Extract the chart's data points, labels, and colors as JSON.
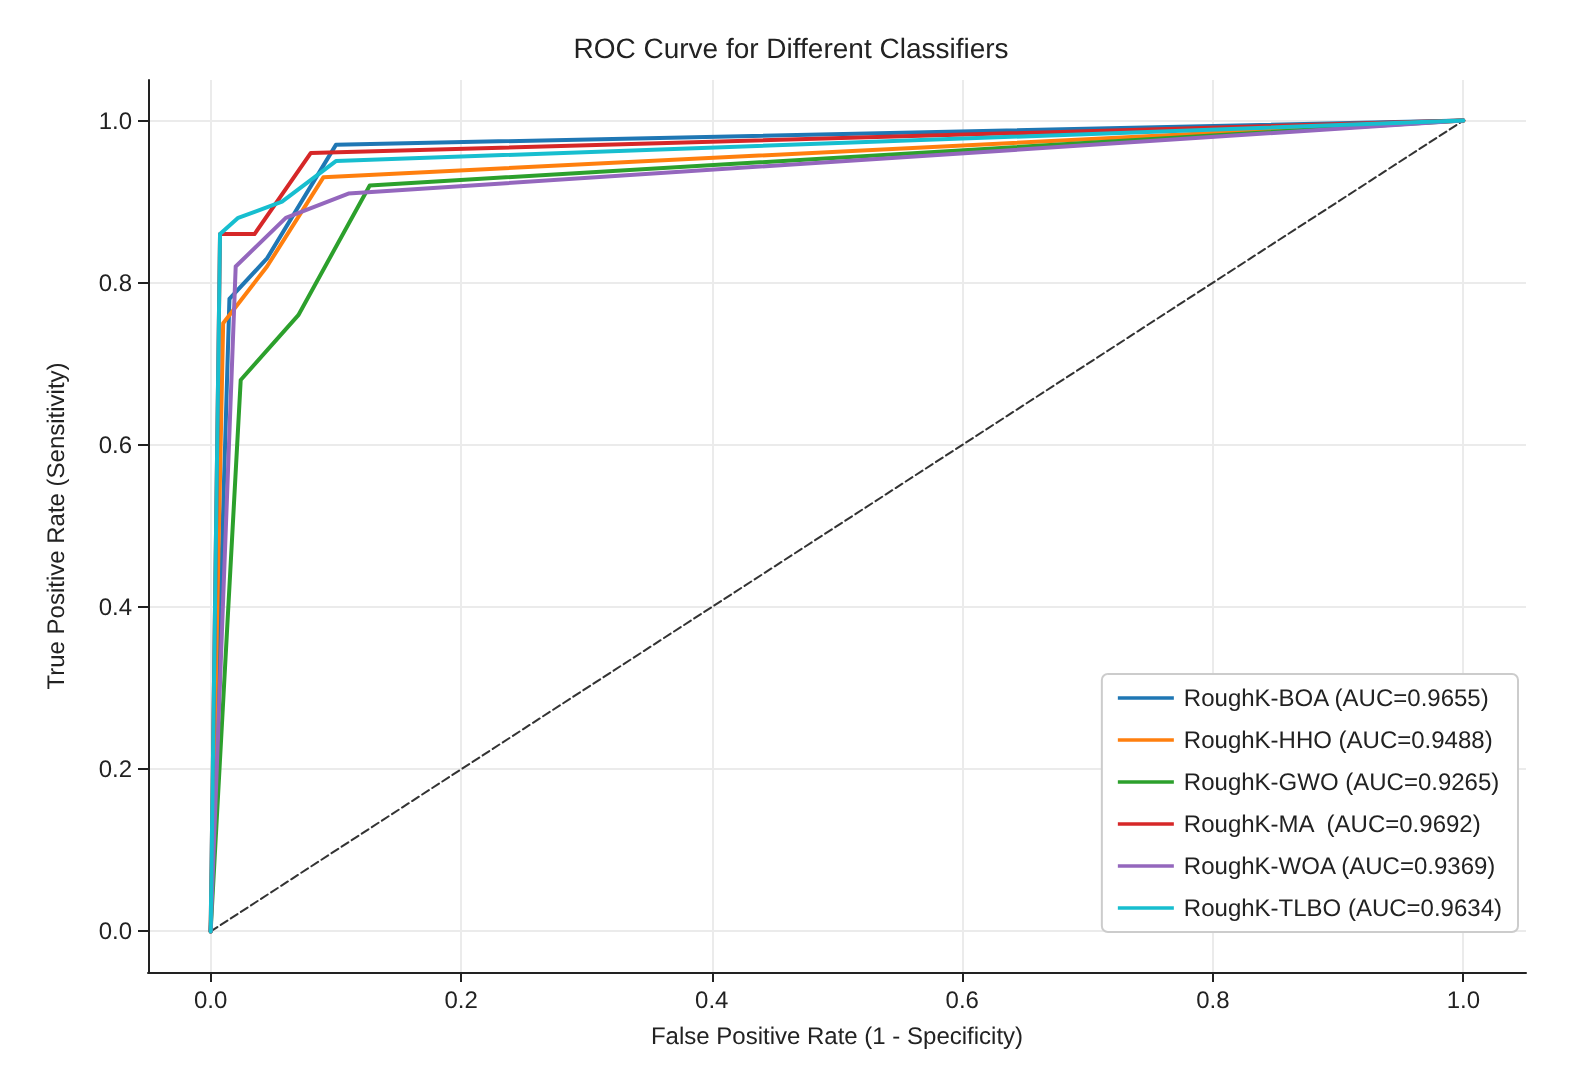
{
  "chart_data": {
    "type": "line",
    "title": "ROC Curve for Different Classifiers",
    "xlabel": "False Positive Rate (1 - Specificity)",
    "ylabel": "True Positive Rate (Sensitivity)",
    "xlim": [
      -0.05,
      1.05
    ],
    "ylim": [
      -0.05,
      1.05
    ],
    "xticks": [
      {
        "value": 0,
        "label": "0.0"
      },
      {
        "value": 0.2,
        "label": "0.2"
      },
      {
        "value": 0.4,
        "label": "0.4"
      },
      {
        "value": 0.6,
        "label": "0.6"
      },
      {
        "value": 0.8,
        "label": "0.8"
      },
      {
        "value": 1,
        "label": "1.0"
      }
    ],
    "yticks": [
      {
        "value": 0,
        "label": "0.0"
      },
      {
        "value": 0.2,
        "label": "0.2"
      },
      {
        "value": 0.4,
        "label": "0.4"
      },
      {
        "value": 0.6,
        "label": "0.6"
      },
      {
        "value": 0.8,
        "label": "0.8"
      },
      {
        "value": 1,
        "label": "1.0"
      }
    ],
    "grid": true,
    "legend": "bottom right",
    "marker": "none",
    "series": [
      {
        "name": "RoughK-BOA (AUC=0.9655)",
        "color": "#1f77b4",
        "x": [
          0,
          0.015,
          0.045,
          0.1,
          1
        ],
        "values": [
          0,
          0.78,
          0.83,
          0.97,
          1
        ]
      },
      {
        "name": "RoughK-HHO (AUC=0.9488)",
        "color": "#ff7f0e",
        "x": [
          0,
          0.01,
          0.045,
          0.09,
          1
        ],
        "values": [
          0,
          0.75,
          0.82,
          0.93,
          1
        ]
      },
      {
        "name": "RoughK-GWO (AUC=0.9265)",
        "color": "#2ca02c",
        "x": [
          0,
          0.024,
          0.07,
          0.127,
          1
        ],
        "values": [
          0,
          0.68,
          0.76,
          0.92,
          1
        ]
      },
      {
        "name": "RoughK-MA  (AUC=0.9692)",
        "color": "#d62728",
        "x": [
          0,
          0.0075,
          0.035,
          0.08,
          1
        ],
        "values": [
          0,
          0.86,
          0.86,
          0.96,
          1
        ]
      },
      {
        "name": "RoughK-WOA (AUC=0.9369)",
        "color": "#9467bd",
        "x": [
          0,
          0.02,
          0.06,
          0.11,
          1
        ],
        "values": [
          0,
          0.82,
          0.88,
          0.91,
          1
        ]
      },
      {
        "name": "RoughK-TLBO (AUC=0.9634)",
        "color": "#17becf",
        "x": [
          0,
          0.0075,
          0.022,
          0.057,
          0.1,
          1
        ],
        "values": [
          0,
          0.86,
          0.88,
          0.9,
          0.95,
          1
        ]
      },
      {
        "color": "#333333",
        "line_style": "dashed",
        "x": [
          0,
          1
        ],
        "values": [
          0,
          1
        ]
      }
    ]
  }
}
